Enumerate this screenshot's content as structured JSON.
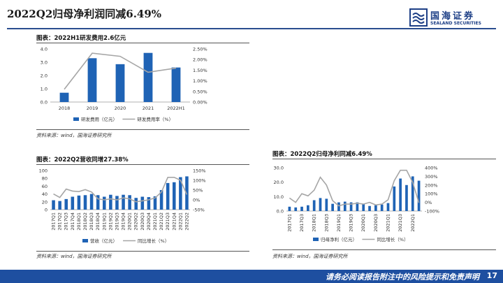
{
  "page": {
    "title": "2022Q2归母净利润同减6.49%",
    "logo": {
      "name_cn": "国海证券",
      "name_en": "SEALAND SECURITIES"
    },
    "footer": "请务必阅读报告附注中的风险提示和免责声明",
    "page_number": "17"
  },
  "colors": {
    "bar": "#1f63b5",
    "line": "#a6a6a6",
    "header_rule": "#2a4d8f",
    "footer": "#1e4fa0"
  },
  "charts": [
    {
      "figure_title": "图表：2022H1研发费用2.6亿元",
      "source": "资料来源：wind，国海证券研究所"
    },
    {
      "figure_title": "图表：2022Q2营收同增27.38%",
      "source": "资料来源：wind，国海证券研究所"
    },
    {
      "figure_title": "图表：2022Q2归母净利同减6.49%",
      "source": "资料来源：wind，国海证券研究所"
    }
  ],
  "chart_data": [
    {
      "type": "bar",
      "categories": [
        "2018",
        "2019",
        "2020",
        "2021",
        "2022H1"
      ],
      "series": [
        {
          "name": "研发费用（亿元）",
          "type": "bar",
          "axis": "left",
          "values": [
            0.7,
            3.3,
            2.85,
            3.7,
            2.6
          ]
        },
        {
          "name": "研发费用率（%）",
          "type": "line",
          "axis": "right",
          "values": [
            0.6,
            2.3,
            2.15,
            1.4,
            1.6
          ]
        }
      ],
      "y_left": {
        "range": [
          0,
          4
        ],
        "ticks": [
          "0.0",
          "1.0",
          "2.0",
          "3.0",
          "4.0"
        ]
      },
      "y_right": {
        "range": [
          0,
          2.5
        ],
        "ticks": [
          "0.00%",
          "0.50%",
          "1.00%",
          "1.50%",
          "2.00%",
          "2.50%"
        ]
      },
      "legend_position": "bottom"
    },
    {
      "type": "bar",
      "categories": [
        "2017Q1",
        "2017Q2",
        "2017Q3",
        "2017Q4",
        "2018Q1",
        "2018Q2",
        "2018Q3",
        "2018Q4",
        "2019Q1",
        "2019Q2",
        "2019Q3",
        "2019Q4",
        "2020Q1",
        "2020Q2",
        "2020Q3",
        "2020Q4",
        "2021Q1",
        "2021Q2",
        "2021Q3",
        "2021Q4",
        "2022Q1",
        "2022Q2"
      ],
      "series": [
        {
          "name": "营收（亿元）",
          "type": "bar",
          "axis": "left",
          "values": [
            24,
            22,
            27,
            33,
            36,
            37,
            40,
            37,
            33,
            38,
            35,
            38,
            37,
            30,
            33,
            32,
            34,
            50,
            68,
            70,
            83,
            85
          ]
        },
        {
          "name": "同比增长（%）",
          "type": "line",
          "axis": "right",
          "values": [
            30,
            12,
            55,
            45,
            42,
            52,
            40,
            5,
            0,
            5,
            0,
            10,
            5,
            -10,
            -5,
            0,
            10,
            40,
            115,
            115,
            100,
            27
          ]
        }
      ],
      "y_left": {
        "range": [
          0,
          100
        ],
        "ticks": [
          "0",
          "20",
          "40",
          "60",
          "80",
          "100"
        ]
      },
      "y_right": {
        "range": [
          -50,
          150
        ],
        "ticks": [
          "-50%",
          "0%",
          "50%",
          "100%",
          "150%"
        ]
      },
      "legend_position": "bottom"
    },
    {
      "type": "bar",
      "categories": [
        "2017Q1",
        "2017Q2",
        "2017Q3",
        "2017Q4",
        "2018Q1",
        "2018Q2",
        "2018Q3",
        "2018Q4",
        "2019Q1",
        "2019Q2",
        "2019Q3",
        "2019Q4",
        "2020Q1",
        "2020Q2",
        "2020Q3",
        "2020Q4",
        "2021Q1",
        "2021Q2",
        "2021Q3",
        "2021Q4",
        "2022Q1",
        "2022Q2"
      ],
      "series": [
        {
          "name": "归母净利（亿元）",
          "type": "bar",
          "axis": "left",
          "values": [
            3,
            2.5,
            3,
            4,
            7.5,
            9,
            8.5,
            5,
            6,
            6.5,
            6,
            6,
            5,
            3.5,
            4,
            4.5,
            5.5,
            17,
            22.5,
            18,
            24,
            21
          ]
        },
        {
          "name": "同比增长（%）",
          "type": "line",
          "axis": "right",
          "values": [
            50,
            0,
            100,
            75,
            140,
            290,
            200,
            20,
            -40,
            -20,
            -20,
            -10,
            -20,
            0,
            -30,
            -20,
            30,
            250,
            370,
            370,
            230,
            -6
          ]
        }
      ],
      "y_left": {
        "range": [
          0,
          30
        ],
        "ticks": [
          "0.0",
          "10.0",
          "20.0",
          "30.0"
        ]
      },
      "y_right": {
        "range": [
          -100,
          400
        ],
        "ticks": [
          "-100%",
          "0%",
          "100%",
          "200%",
          "300%",
          "400%"
        ]
      },
      "legend_position": "bottom"
    }
  ]
}
